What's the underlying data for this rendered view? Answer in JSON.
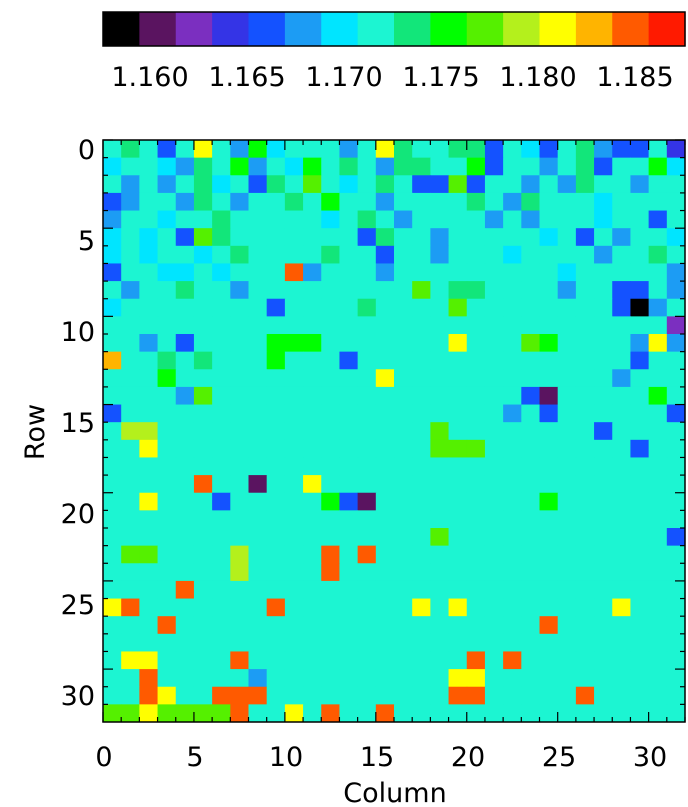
{
  "chart_data": {
    "type": "heatmap",
    "title": "",
    "xlabel": "Column",
    "ylabel": "Row",
    "x_ticks": [
      "0",
      "5",
      "10",
      "15",
      "20",
      "25",
      "30"
    ],
    "y_ticks": [
      "0",
      "5",
      "10",
      "15",
      "20",
      "25",
      "30"
    ],
    "xlim": [
      0,
      32
    ],
    "ylim": [
      0,
      32
    ],
    "y_axis_inverted": true,
    "colorbar": {
      "vmin": 1.156,
      "vmax": 1.19,
      "tick_labels": [
        "1.160",
        "1.165",
        "1.170",
        "1.175",
        "1.180",
        "1.185"
      ],
      "tick_values": [
        1.16,
        1.165,
        1.17,
        1.175,
        1.18,
        1.185
      ],
      "colors": [
        "#000000",
        "#5a1460",
        "#7b2fc0",
        "#3434e6",
        "#1452ff",
        "#1c9cf4",
        "#00e5ff",
        "#1cf5d2",
        "#12e67a",
        "#00ff00",
        "#55f000",
        "#b4f01c",
        "#ffff00",
        "#ffb400",
        "#ff5a00",
        "#ff1a00"
      ]
    },
    "values": [
      [
        1.171,
        1.173,
        1.172,
        1.165,
        1.172,
        1.182,
        1.172,
        1.168,
        1.176,
        1.169,
        1.172,
        1.172,
        1.171,
        1.168,
        1.171,
        1.182,
        1.175,
        1.172,
        1.172,
        1.173,
        1.174,
        1.165,
        1.172,
        1.17,
        1.165,
        1.172,
        1.175,
        1.168,
        1.165,
        1.166,
        1.172,
        1.164
      ],
      [
        1.169,
        1.172,
        1.172,
        1.17,
        1.167,
        1.174,
        1.171,
        1.177,
        1.168,
        1.172,
        1.169,
        1.176,
        1.172,
        1.175,
        1.171,
        1.168,
        1.175,
        1.173,
        1.172,
        1.172,
        1.176,
        1.166,
        1.172,
        1.171,
        1.168,
        1.172,
        1.174,
        1.166,
        1.172,
        1.172,
        1.177,
        1.17
      ],
      [
        1.172,
        1.168,
        1.171,
        1.168,
        1.172,
        1.175,
        1.17,
        1.171,
        1.166,
        1.173,
        1.172,
        1.179,
        1.172,
        1.169,
        1.171,
        1.173,
        1.172,
        1.165,
        1.166,
        1.178,
        1.165,
        1.171,
        1.172,
        1.168,
        1.172,
        1.168,
        1.173,
        1.171,
        1.172,
        1.168,
        1.172,
        1.172
      ],
      [
        1.166,
        1.168,
        1.172,
        1.172,
        1.168,
        1.173,
        1.172,
        1.168,
        1.171,
        1.172,
        1.174,
        1.172,
        1.176,
        1.172,
        1.172,
        1.168,
        1.172,
        1.171,
        1.172,
        1.172,
        1.173,
        1.172,
        1.168,
        1.175,
        1.172,
        1.172,
        1.171,
        1.169,
        1.171,
        1.172,
        1.172,
        1.172
      ],
      [
        1.168,
        1.171,
        1.172,
        1.169,
        1.172,
        1.172,
        1.174,
        1.172,
        1.172,
        1.171,
        1.172,
        1.172,
        1.169,
        1.172,
        1.174,
        1.172,
        1.168,
        1.172,
        1.171,
        1.171,
        1.172,
        1.168,
        1.172,
        1.168,
        1.172,
        1.172,
        1.171,
        1.169,
        1.172,
        1.172,
        1.166,
        1.172
      ],
      [
        1.17,
        1.172,
        1.169,
        1.172,
        1.166,
        1.179,
        1.173,
        1.172,
        1.172,
        1.171,
        1.172,
        1.172,
        1.172,
        1.172,
        1.166,
        1.173,
        1.172,
        1.172,
        1.168,
        1.172,
        1.172,
        1.171,
        1.172,
        1.172,
        1.17,
        1.171,
        1.166,
        1.172,
        1.168,
        1.171,
        1.172,
        1.169
      ],
      [
        1.17,
        1.172,
        1.17,
        1.171,
        1.172,
        1.169,
        1.172,
        1.174,
        1.171,
        1.172,
        1.172,
        1.172,
        1.174,
        1.172,
        1.172,
        1.166,
        1.172,
        1.172,
        1.168,
        1.172,
        1.172,
        1.172,
        1.169,
        1.172,
        1.172,
        1.172,
        1.172,
        1.168,
        1.172,
        1.172,
        1.173,
        1.172
      ],
      [
        1.166,
        1.171,
        1.172,
        1.17,
        1.17,
        1.172,
        1.17,
        1.172,
        1.172,
        1.171,
        1.187,
        1.168,
        1.172,
        1.172,
        1.172,
        1.168,
        1.172,
        1.172,
        1.172,
        1.172,
        1.172,
        1.172,
        1.172,
        1.171,
        1.172,
        1.17,
        1.172,
        1.172,
        1.172,
        1.172,
        1.172,
        1.168
      ],
      [
        1.172,
        1.168,
        1.172,
        1.172,
        1.174,
        1.172,
        1.172,
        1.168,
        1.171,
        1.172,
        1.172,
        1.172,
        1.172,
        1.172,
        1.172,
        1.172,
        1.172,
        1.179,
        1.172,
        1.175,
        1.175,
        1.172,
        1.172,
        1.172,
        1.172,
        1.168,
        1.172,
        1.172,
        1.166,
        1.166,
        1.172,
        1.168
      ],
      [
        1.17,
        1.172,
        1.172,
        1.172,
        1.172,
        1.172,
        1.172,
        1.172,
        1.172,
        1.166,
        1.172,
        1.172,
        1.172,
        1.172,
        1.173,
        1.172,
        1.172,
        1.172,
        1.172,
        1.179,
        1.172,
        1.172,
        1.172,
        1.172,
        1.172,
        1.172,
        1.172,
        1.172,
        1.166,
        1.157,
        1.168,
        1.172
      ],
      [
        1.171,
        1.172,
        1.172,
        1.172,
        1.172,
        1.172,
        1.172,
        1.172,
        1.172,
        1.172,
        1.172,
        1.172,
        1.172,
        1.172,
        1.172,
        1.172,
        1.172,
        1.172,
        1.172,
        1.172,
        1.172,
        1.172,
        1.172,
        1.172,
        1.172,
        1.172,
        1.172,
        1.172,
        1.172,
        1.172,
        1.172,
        1.161
      ],
      [
        1.172,
        1.172,
        1.168,
        1.172,
        1.166,
        1.172,
        1.172,
        1.172,
        1.172,
        1.176,
        1.176,
        1.176,
        1.171,
        1.171,
        1.171,
        1.172,
        1.172,
        1.172,
        1.172,
        1.182,
        1.172,
        1.172,
        1.172,
        1.178,
        1.176,
        1.172,
        1.172,
        1.172,
        1.172,
        1.168,
        1.182,
        1.168
      ],
      [
        1.184,
        1.172,
        1.172,
        1.173,
        1.172,
        1.175,
        1.172,
        1.172,
        1.172,
        1.176,
        1.172,
        1.172,
        1.172,
        1.166,
        1.172,
        1.172,
        1.172,
        1.172,
        1.172,
        1.172,
        1.172,
        1.172,
        1.172,
        1.172,
        1.172,
        1.172,
        1.172,
        1.172,
        1.172,
        1.166,
        1.172,
        1.172
      ],
      [
        1.172,
        1.172,
        1.172,
        1.176,
        1.172,
        1.172,
        1.172,
        1.172,
        1.172,
        1.172,
        1.172,
        1.172,
        1.172,
        1.172,
        1.172,
        1.182,
        1.172,
        1.172,
        1.172,
        1.172,
        1.172,
        1.172,
        1.172,
        1.172,
        1.172,
        1.172,
        1.172,
        1.172,
        1.168,
        1.172,
        1.172,
        1.172
      ],
      [
        1.172,
        1.172,
        1.172,
        1.172,
        1.168,
        1.178,
        1.172,
        1.172,
        1.172,
        1.172,
        1.172,
        1.172,
        1.172,
        1.172,
        1.172,
        1.172,
        1.172,
        1.172,
        1.172,
        1.172,
        1.172,
        1.172,
        1.172,
        1.166,
        1.16,
        1.172,
        1.172,
        1.172,
        1.172,
        1.172,
        1.176,
        1.172
      ],
      [
        1.166,
        1.172,
        1.172,
        1.172,
        1.172,
        1.172,
        1.172,
        1.172,
        1.172,
        1.172,
        1.172,
        1.172,
        1.172,
        1.172,
        1.172,
        1.172,
        1.172,
        1.172,
        1.172,
        1.172,
        1.172,
        1.172,
        1.168,
        1.172,
        1.166,
        1.172,
        1.172,
        1.172,
        1.172,
        1.172,
        1.172,
        1.166
      ],
      [
        1.172,
        1.18,
        1.18,
        1.172,
        1.172,
        1.172,
        1.172,
        1.172,
        1.172,
        1.172,
        1.172,
        1.172,
        1.172,
        1.172,
        1.172,
        1.172,
        1.172,
        1.172,
        1.178,
        1.172,
        1.172,
        1.172,
        1.172,
        1.172,
        1.172,
        1.172,
        1.172,
        1.166,
        1.172,
        1.172,
        1.172,
        1.172
      ],
      [
        1.172,
        1.172,
        1.182,
        1.172,
        1.172,
        1.172,
        1.172,
        1.172,
        1.172,
        1.172,
        1.172,
        1.172,
        1.172,
        1.172,
        1.172,
        1.172,
        1.172,
        1.172,
        1.178,
        1.178,
        1.178,
        1.172,
        1.172,
        1.172,
        1.172,
        1.172,
        1.172,
        1.172,
        1.172,
        1.166,
        1.172,
        1.172
      ],
      [
        1.172,
        1.172,
        1.172,
        1.172,
        1.172,
        1.172,
        1.172,
        1.172,
        1.172,
        1.172,
        1.172,
        1.172,
        1.172,
        1.172,
        1.172,
        1.172,
        1.172,
        1.172,
        1.172,
        1.172,
        1.172,
        1.172,
        1.172,
        1.172,
        1.172,
        1.172,
        1.172,
        1.172,
        1.172,
        1.172,
        1.172,
        1.172
      ],
      [
        1.172,
        1.172,
        1.172,
        1.172,
        1.172,
        1.186,
        1.172,
        1.172,
        1.16,
        1.172,
        1.172,
        1.182,
        1.172,
        1.172,
        1.172,
        1.172,
        1.172,
        1.172,
        1.172,
        1.172,
        1.172,
        1.172,
        1.172,
        1.172,
        1.172,
        1.172,
        1.172,
        1.172,
        1.172,
        1.172,
        1.172,
        1.172
      ],
      [
        1.172,
        1.172,
        1.182,
        1.172,
        1.172,
        1.172,
        1.166,
        1.172,
        1.172,
        1.172,
        1.172,
        1.172,
        1.176,
        1.166,
        1.16,
        1.172,
        1.172,
        1.172,
        1.172,
        1.172,
        1.172,
        1.172,
        1.172,
        1.172,
        1.176,
        1.172,
        1.172,
        1.172,
        1.172,
        1.172,
        1.172,
        1.172
      ],
      [
        1.172,
        1.172,
        1.172,
        1.172,
        1.172,
        1.172,
        1.172,
        1.172,
        1.172,
        1.172,
        1.172,
        1.172,
        1.172,
        1.172,
        1.172,
        1.172,
        1.172,
        1.172,
        1.172,
        1.172,
        1.172,
        1.172,
        1.172,
        1.172,
        1.172,
        1.172,
        1.172,
        1.172,
        1.172,
        1.172,
        1.172,
        1.172
      ],
      [
        1.172,
        1.172,
        1.172,
        1.172,
        1.172,
        1.172,
        1.172,
        1.172,
        1.172,
        1.172,
        1.172,
        1.172,
        1.172,
        1.172,
        1.172,
        1.172,
        1.172,
        1.172,
        1.178,
        1.172,
        1.172,
        1.172,
        1.172,
        1.172,
        1.172,
        1.172,
        1.172,
        1.172,
        1.172,
        1.172,
        1.172,
        1.166
      ],
      [
        1.172,
        1.178,
        1.178,
        1.172,
        1.172,
        1.172,
        1.172,
        1.18,
        1.172,
        1.172,
        1.172,
        1.172,
        1.186,
        1.172,
        1.187,
        1.172,
        1.172,
        1.172,
        1.172,
        1.172,
        1.172,
        1.172,
        1.172,
        1.172,
        1.172,
        1.172,
        1.172,
        1.172,
        1.172,
        1.172,
        1.172,
        1.172
      ],
      [
        1.172,
        1.172,
        1.172,
        1.172,
        1.172,
        1.172,
        1.172,
        1.18,
        1.172,
        1.172,
        1.172,
        1.172,
        1.186,
        1.172,
        1.172,
        1.172,
        1.172,
        1.172,
        1.172,
        1.172,
        1.172,
        1.172,
        1.172,
        1.172,
        1.172,
        1.172,
        1.172,
        1.172,
        1.172,
        1.172,
        1.172,
        1.172
      ],
      [
        1.172,
        1.172,
        1.172,
        1.172,
        1.186,
        1.172,
        1.172,
        1.172,
        1.172,
        1.172,
        1.172,
        1.172,
        1.172,
        1.172,
        1.172,
        1.172,
        1.172,
        1.172,
        1.172,
        1.172,
        1.172,
        1.172,
        1.172,
        1.172,
        1.172,
        1.172,
        1.172,
        1.172,
        1.172,
        1.172,
        1.172,
        1.172
      ],
      [
        1.182,
        1.186,
        1.172,
        1.172,
        1.172,
        1.172,
        1.172,
        1.172,
        1.172,
        1.186,
        1.172,
        1.172,
        1.172,
        1.172,
        1.172,
        1.172,
        1.172,
        1.182,
        1.172,
        1.182,
        1.172,
        1.172,
        1.172,
        1.172,
        1.172,
        1.172,
        1.172,
        1.172,
        1.182,
        1.172,
        1.172,
        1.172
      ],
      [
        1.172,
        1.172,
        1.172,
        1.186,
        1.172,
        1.172,
        1.172,
        1.172,
        1.172,
        1.172,
        1.172,
        1.172,
        1.172,
        1.172,
        1.172,
        1.172,
        1.172,
        1.172,
        1.172,
        1.172,
        1.172,
        1.172,
        1.172,
        1.172,
        1.186,
        1.172,
        1.172,
        1.172,
        1.172,
        1.172,
        1.172,
        1.172
      ],
      [
        1.172,
        1.172,
        1.172,
        1.172,
        1.172,
        1.172,
        1.172,
        1.172,
        1.172,
        1.172,
        1.172,
        1.172,
        1.172,
        1.172,
        1.172,
        1.172,
        1.172,
        1.172,
        1.172,
        1.172,
        1.172,
        1.172,
        1.172,
        1.172,
        1.172,
        1.172,
        1.172,
        1.172,
        1.172,
        1.172,
        1.172,
        1.172
      ],
      [
        1.172,
        1.182,
        1.182,
        1.172,
        1.172,
        1.172,
        1.172,
        1.186,
        1.172,
        1.172,
        1.172,
        1.172,
        1.172,
        1.172,
        1.172,
        1.172,
        1.172,
        1.172,
        1.172,
        1.172,
        1.186,
        1.172,
        1.186,
        1.172,
        1.172,
        1.172,
        1.172,
        1.172,
        1.172,
        1.172,
        1.172,
        1.172
      ],
      [
        1.172,
        1.172,
        1.186,
        1.172,
        1.172,
        1.172,
        1.172,
        1.172,
        1.168,
        1.172,
        1.172,
        1.172,
        1.172,
        1.172,
        1.172,
        1.172,
        1.172,
        1.172,
        1.172,
        1.182,
        1.182,
        1.172,
        1.172,
        1.172,
        1.172,
        1.172,
        1.172,
        1.172,
        1.172,
        1.172,
        1.172,
        1.172
      ],
      [
        1.172,
        1.172,
        1.186,
        1.182,
        1.172,
        1.172,
        1.186,
        1.186,
        1.186,
        1.172,
        1.172,
        1.172,
        1.172,
        1.172,
        1.172,
        1.172,
        1.172,
        1.172,
        1.172,
        1.186,
        1.186,
        1.172,
        1.172,
        1.172,
        1.172,
        1.172,
        1.186,
        1.172,
        1.172,
        1.172,
        1.172,
        1.172
      ],
      [
        1.178,
        1.178,
        1.182,
        1.178,
        1.178,
        1.178,
        1.178,
        1.186,
        1.172,
        1.172,
        1.182,
        1.172,
        1.186,
        1.172,
        1.172,
        1.186,
        1.172,
        1.172,
        1.172,
        1.172,
        1.172,
        1.172,
        1.172,
        1.172,
        1.172,
        1.172,
        1.172,
        1.172,
        1.172,
        1.172,
        1.172,
        1.172
      ]
    ]
  }
}
